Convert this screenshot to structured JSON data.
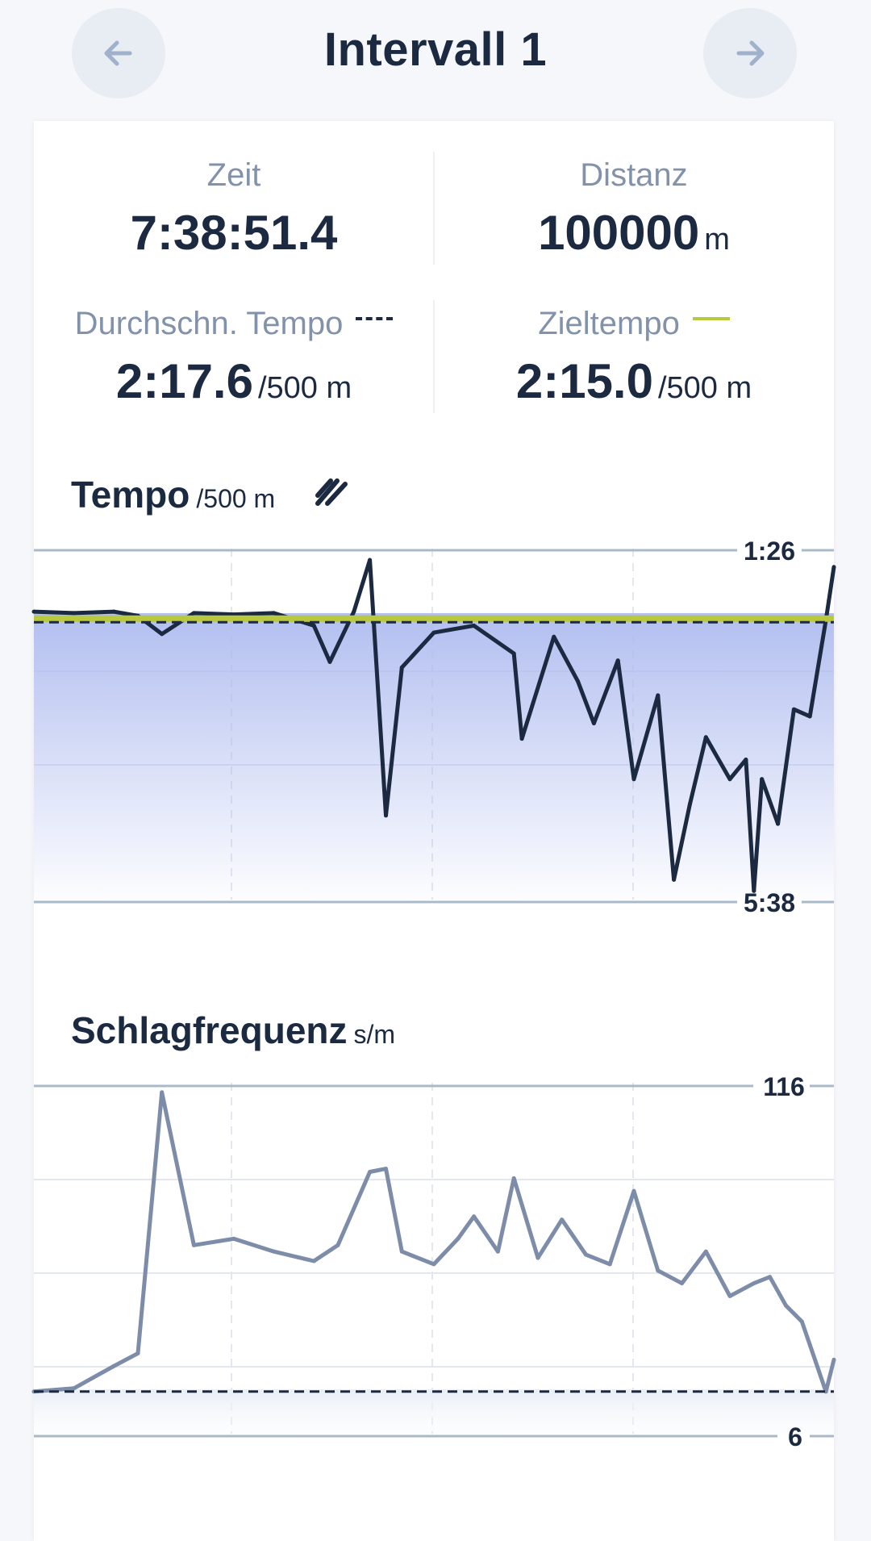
{
  "header": {
    "title": "Intervall 1",
    "prev_icon": "arrow-left-icon",
    "next_icon": "arrow-right-icon"
  },
  "stats": {
    "time": {
      "label": "Zeit",
      "value": "7:38:51.4"
    },
    "distance": {
      "label": "Distanz",
      "value": "100000",
      "unit": "m"
    },
    "avg_pace": {
      "label": "Durchschn. Tempo",
      "value": "2:17.6",
      "unit": "/500 m"
    },
    "target_pace": {
      "label": "Zieltempo",
      "value": "2:15.0",
      "unit": "/500 m"
    }
  },
  "colors": {
    "text": "#1b2a40",
    "muted": "#8292ab",
    "target_line": "#b9c83c",
    "pace_fill": "#aebbef",
    "rate_line": "#7d8ca8"
  },
  "pace_chart": {
    "title": "Tempo",
    "unit": "/500 m",
    "toggle_icon": "slash-toggle-icon",
    "max_label": "1:26",
    "min_label": "5:38",
    "avg_seconds": 137.6,
    "target_seconds": 135.0
  },
  "rate_chart": {
    "title": "Schlagfrequenz",
    "unit": "s/m",
    "max_label": "116",
    "min_label": "6",
    "avg": 20
  },
  "chart_data": [
    {
      "type": "line",
      "title": "Tempo",
      "ylabel": "/500 m",
      "y_axis_inverted": true,
      "ylim_seconds": [
        86,
        338
      ],
      "y_tick_labels": [
        "1:26",
        "5:38"
      ],
      "reference_lines": [
        {
          "kind": "average",
          "seconds": 137.6,
          "style": "dashed"
        },
        {
          "kind": "target",
          "seconds": 135.0,
          "style": "solid"
        }
      ],
      "series": [
        {
          "x": [
            0,
            0.05,
            0.1,
            0.13,
            0.16,
            0.2,
            0.25,
            0.3,
            0.35,
            0.37,
            0.4,
            0.42,
            0.44,
            0.46,
            0.5,
            0.55,
            0.6,
            0.61,
            0.65,
            0.68,
            0.7,
            0.73,
            0.75,
            0.78,
            0.8,
            0.82,
            0.84,
            0.87,
            0.89,
            0.9,
            0.91,
            0.93,
            0.95,
            0.97,
            0.99,
            1.0
          ],
          "values": [
            130,
            131,
            130,
            133,
            146,
            131,
            132,
            131,
            140,
            166,
            130,
            93,
            276,
            170,
            145,
            140,
            160,
            221,
            148,
            180,
            210,
            165,
            250,
            190,
            322,
            268,
            220,
            250,
            236,
            330,
            250,
            282,
            200,
            205,
            136,
            98
          ]
        }
      ]
    },
    {
      "type": "line",
      "title": "Schlagfrequenz",
      "ylabel": "s/m",
      "ylim": [
        6,
        116
      ],
      "y_tick_labels": [
        "116",
        "6"
      ],
      "reference_lines": [
        {
          "kind": "average",
          "value": 20,
          "style": "dashed"
        }
      ],
      "series": [
        {
          "x": [
            0,
            0.05,
            0.1,
            0.13,
            0.16,
            0.2,
            0.25,
            0.3,
            0.35,
            0.38,
            0.42,
            0.44,
            0.46,
            0.5,
            0.53,
            0.55,
            0.58,
            0.6,
            0.63,
            0.66,
            0.69,
            0.72,
            0.75,
            0.78,
            0.81,
            0.84,
            0.87,
            0.9,
            0.92,
            0.94,
            0.96,
            0.99,
            1.0
          ],
          "values": [
            20,
            21,
            28,
            32,
            114,
            66,
            68,
            64,
            61,
            66,
            89,
            90,
            64,
            60,
            68,
            75,
            64,
            87,
            62,
            74,
            63,
            60,
            83,
            58,
            54,
            64,
            50,
            54,
            56,
            47,
            42,
            20,
            30
          ]
        }
      ]
    }
  ]
}
